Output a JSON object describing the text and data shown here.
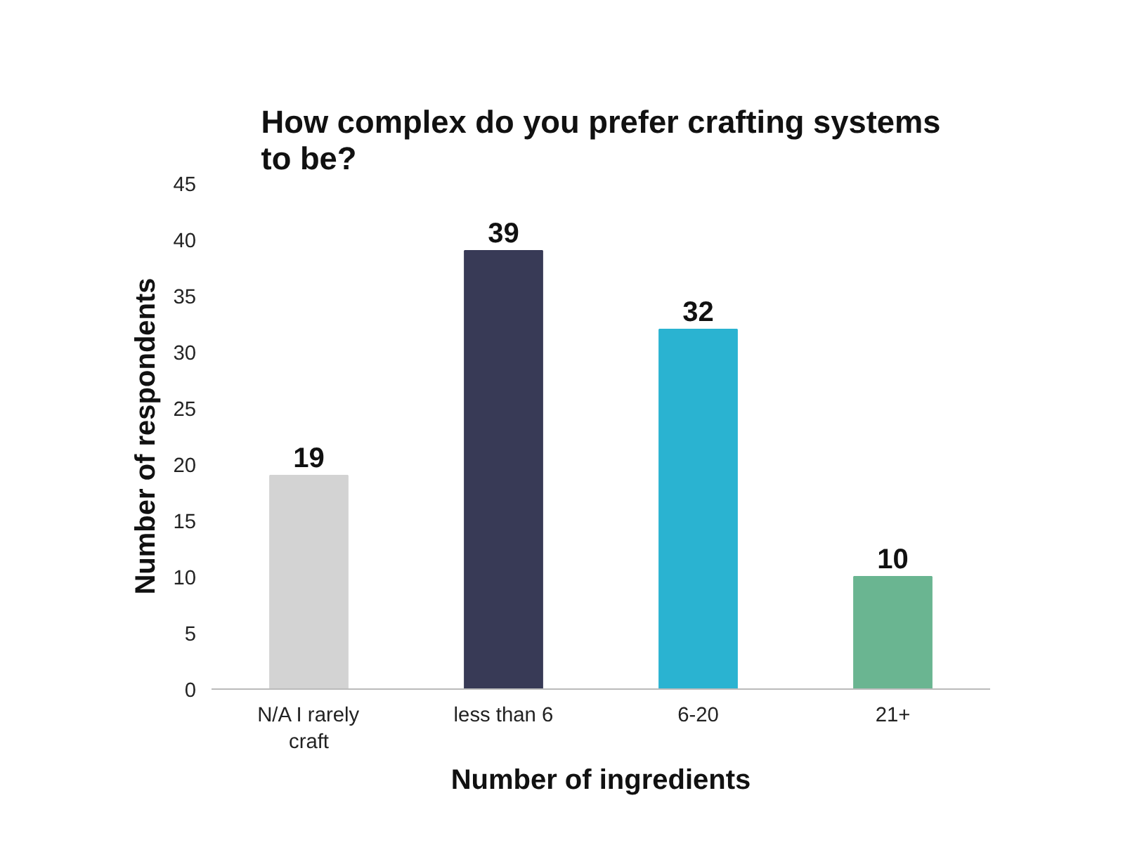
{
  "chart_data": {
    "type": "bar",
    "title": "How complex do you prefer crafting systems to be?",
    "xlabel": "Number of ingredients",
    "ylabel": "Number of respondents",
    "categories": [
      "N/A I rarely craft",
      "less than 6",
      "6-20",
      "21+"
    ],
    "values": [
      19,
      39,
      32,
      10
    ],
    "colors": [
      "#d3d3d3",
      "#383a56",
      "#2ab3d1",
      "#6ab591"
    ],
    "ylim": [
      0,
      45
    ],
    "yticks": [
      0,
      5,
      10,
      15,
      20,
      25,
      30,
      35,
      40,
      45
    ],
    "grid": false,
    "data_labels": true
  }
}
